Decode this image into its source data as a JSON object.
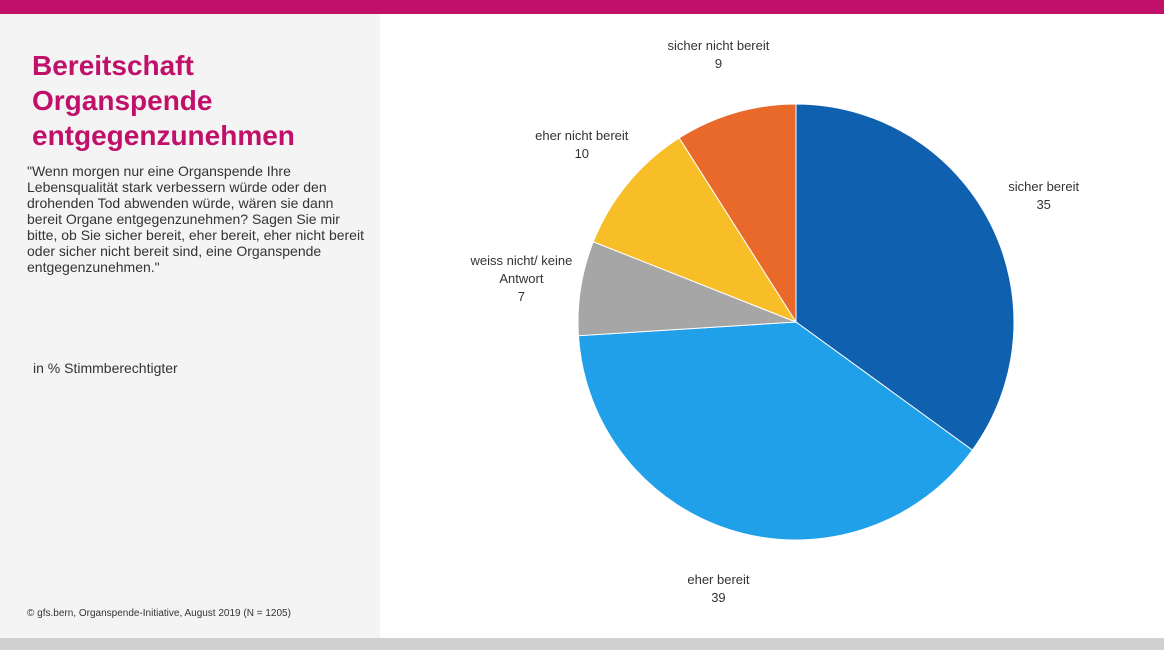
{
  "chart_data": {
    "type": "pie",
    "title": "Bereitschaft Organspende entgegenzunehmen",
    "subtitle": "\"Wenn morgen nur eine Organspende Ihre Lebensqualität stark verbessern würde oder den drohenden Tod abwenden würde, wären sie dann bereit Organe entgegenzunehmen? Sagen Sie mir bitte, ob Sie sicher bereit, eher bereit, eher nicht bereit oder sicher nicht bereit sind, eine Organspende entgegenzunehmen.\"",
    "note": "in % Stimmberechtigter",
    "source": "© gfs.bern, Organspende-Initiative, August 2019 (N = 1205)",
    "categories": [
      "sicher bereit",
      "eher bereit",
      "weiss nicht/ keine Antwort",
      "eher nicht bereit",
      "sicher nicht bereit"
    ],
    "values": [
      35,
      39,
      7,
      10,
      9
    ],
    "colors": [
      "#1060b0",
      "#20a0e8",
      "#a6a6a6",
      "#f8be28",
      "#e8692a"
    ]
  }
}
